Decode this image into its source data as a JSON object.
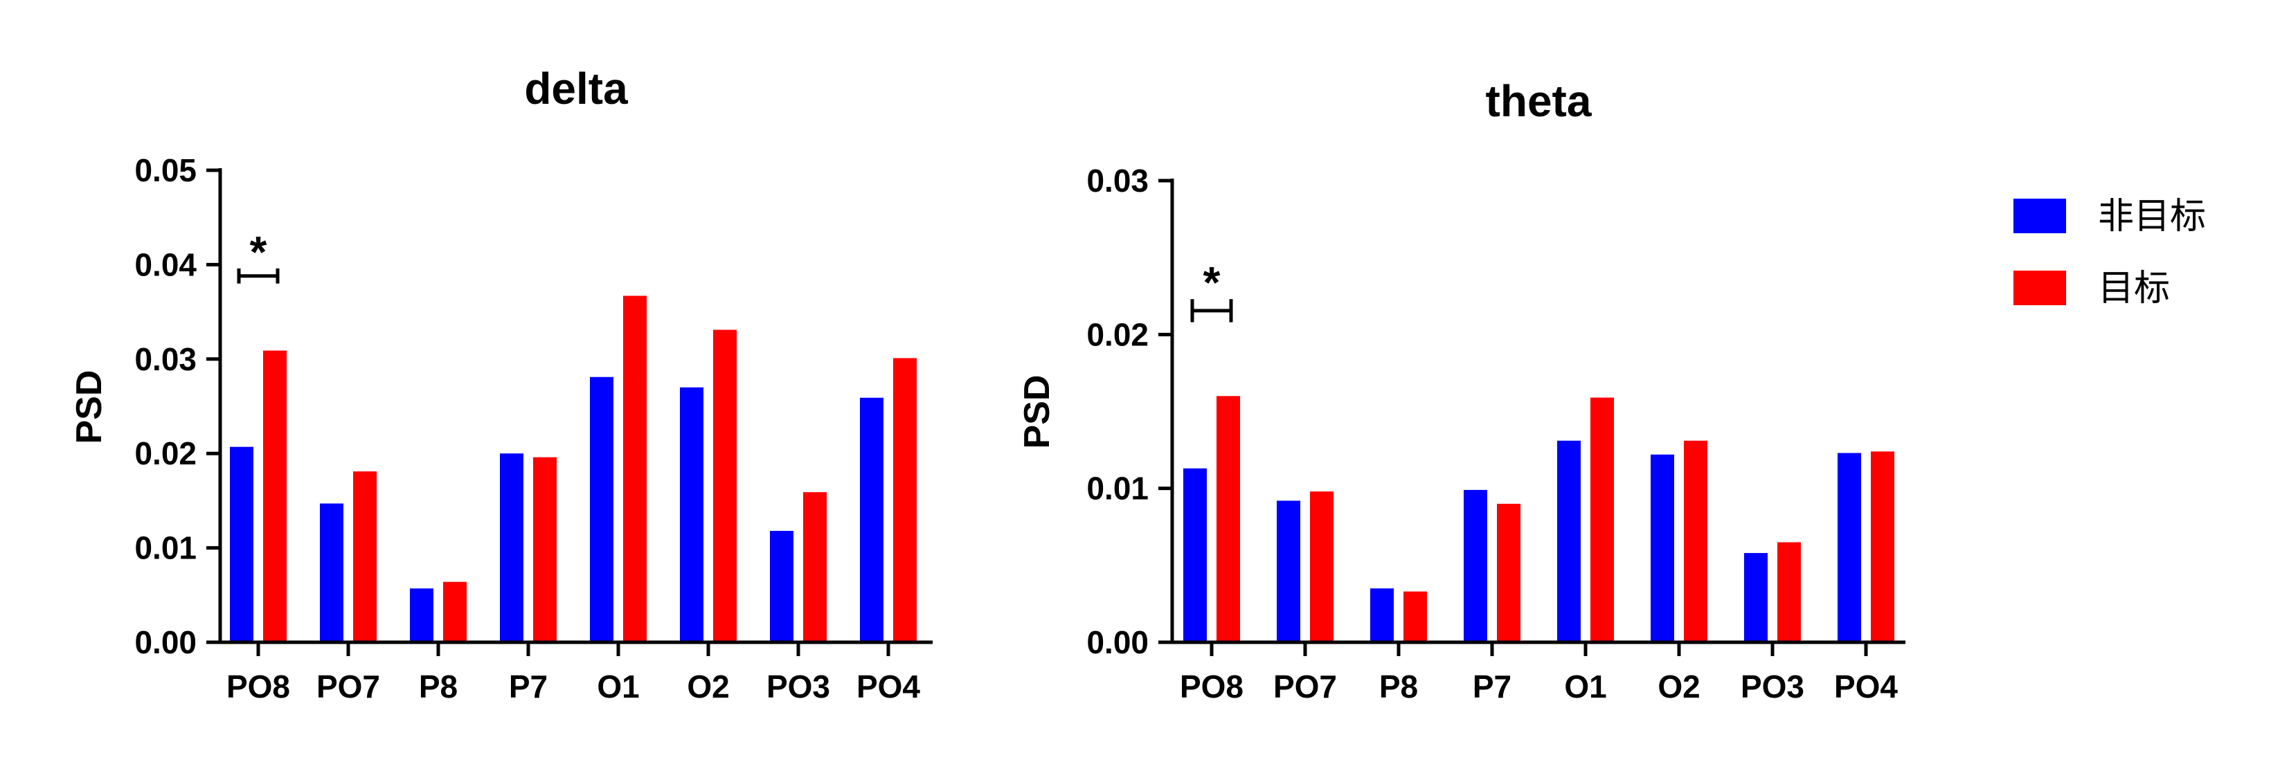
{
  "chart_data": [
    {
      "type": "bar",
      "title": "delta",
      "xlabel": "",
      "ylabel": "PSD",
      "ylim": [
        0,
        0.05
      ],
      "yticks": [
        "0.00",
        "0.01",
        "0.02",
        "0.03",
        "0.04",
        "0.05"
      ],
      "categories": [
        "PO8",
        "PO7",
        "P8",
        "P7",
        "O1",
        "O2",
        "PO3",
        "PO4"
      ],
      "series": [
        {
          "name": "非目标",
          "color": "#0000ff",
          "values": [
            0.0207,
            0.0147,
            0.0057,
            0.02,
            0.0281,
            0.027,
            0.0118,
            0.0259
          ]
        },
        {
          "name": "目标",
          "color": "#ff0000",
          "values": [
            0.0309,
            0.0181,
            0.0064,
            0.0196,
            0.0367,
            0.0331,
            0.0159,
            0.0301
          ]
        }
      ],
      "annotations": [
        {
          "label": "*",
          "category": "PO8",
          "y_low": 0.038,
          "y_high": 0.0396
        }
      ]
    },
    {
      "type": "bar",
      "title": "theta",
      "xlabel": "",
      "ylabel": "PSD",
      "ylim": [
        0,
        0.03
      ],
      "yticks": [
        "0.00",
        "0.01",
        "0.02",
        "0.03"
      ],
      "categories": [
        "PO8",
        "PO7",
        "P8",
        "P7",
        "O1",
        "O2",
        "PO3",
        "PO4"
      ],
      "series": [
        {
          "name": "非目标",
          "color": "#0000ff",
          "values": [
            0.0113,
            0.0092,
            0.0035,
            0.0099,
            0.0131,
            0.0122,
            0.0058,
            0.0123
          ]
        },
        {
          "name": "目标",
          "color": "#ff0000",
          "values": [
            0.016,
            0.0098,
            0.0033,
            0.009,
            0.0159,
            0.0131,
            0.0065,
            0.0124
          ]
        }
      ],
      "annotations": [
        {
          "label": "*",
          "category": "PO8",
          "y_low": 0.0208,
          "y_high": 0.0223
        }
      ]
    }
  ],
  "legend": {
    "placement": "right",
    "items": [
      {
        "label": "非目标",
        "color": "#0000ff"
      },
      {
        "label": "目标",
        "color": "#ff0000"
      }
    ]
  }
}
